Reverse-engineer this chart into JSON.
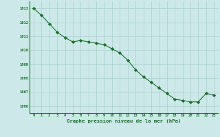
{
  "x": [
    0,
    1,
    2,
    3,
    4,
    5,
    6,
    7,
    8,
    9,
    10,
    11,
    12,
    13,
    14,
    15,
    16,
    17,
    18,
    19,
    20,
    21,
    22,
    23
  ],
  "y": [
    1013.0,
    1012.5,
    1011.9,
    1011.3,
    1010.9,
    1010.6,
    1010.7,
    1010.6,
    1010.5,
    1010.4,
    1010.1,
    1009.8,
    1009.3,
    1008.6,
    1008.1,
    1007.7,
    1007.3,
    1006.9,
    1006.5,
    1006.4,
    1006.3,
    1006.3,
    1006.9,
    1006.8
  ],
  "ylabel_values": [
    1006,
    1007,
    1008,
    1009,
    1010,
    1011,
    1012,
    1013
  ],
  "xlabels": [
    "0",
    "1",
    "2",
    "3",
    "4",
    "5",
    "6",
    "7",
    "8",
    "9",
    "10",
    "11",
    "12",
    "13",
    "14",
    "15",
    "16",
    "17",
    "18",
    "19",
    "20",
    "21",
    "22",
    "23"
  ],
  "xlabel": "Graphe pression niveau de la mer (hPa)",
  "line_color": "#1a6e2e",
  "marker_color": "#1a6e2e",
  "bg_color": "#cce8e8",
  "grid_color": "#aed4d4",
  "ylim": [
    1005.5,
    1013.5
  ],
  "xlim": [
    -0.5,
    23.5
  ]
}
